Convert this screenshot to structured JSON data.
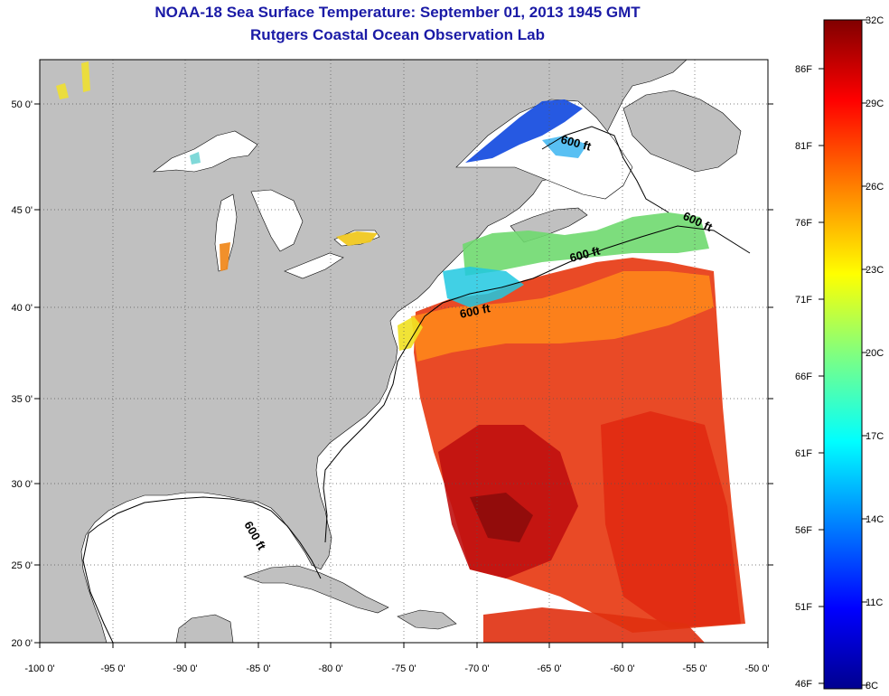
{
  "header": {
    "title": "NOAA-18 Sea Surface Temperature:  September 01, 2013 1945 GMT",
    "subtitle": "Rutgers Coastal Ocean Observation Lab"
  },
  "map": {
    "lon_range": [
      -100,
      -50
    ],
    "lat_range": [
      20,
      52
    ],
    "x_ticks": [
      "-100 0'",
      "-95 0'",
      "-90 0'",
      "-85 0'",
      "-80 0'",
      "-75 0'",
      "-70 0'",
      "-65 0'",
      "-60 0'",
      "-55 0'",
      "-50 0'"
    ],
    "y_ticks": [
      "20 0'",
      "25 0'",
      "30 0'",
      "35 0'",
      "40 0'",
      "45 0'",
      "50 0'"
    ],
    "land_color": "#c0c0c0",
    "water_color": "#ffffff",
    "grid": "dotted",
    "isobath_labels": [
      "600 ft",
      "600 ft",
      "600 ft",
      "600 ft",
      "600 ft"
    ]
  },
  "colorbar": {
    "celsius_labels": [
      "32C",
      "29C",
      "26C",
      "23C",
      "20C",
      "17C",
      "14C",
      "11C",
      "8C"
    ],
    "fahrenheit_labels": [
      "86F",
      "81F",
      "76F",
      "71F",
      "66F",
      "61F",
      "56F",
      "51F",
      "46F"
    ],
    "colormap": [
      "#00008f",
      "#0000ff",
      "#0080ff",
      "#00ffff",
      "#80ff80",
      "#ffff00",
      "#ff8000",
      "#ff0000",
      "#800000"
    ]
  }
}
